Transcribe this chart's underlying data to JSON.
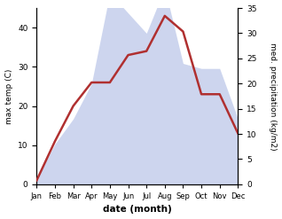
{
  "months": [
    "Jan",
    "Feb",
    "Mar",
    "Apr",
    "May",
    "Jun",
    "Jul",
    "Aug",
    "Sep",
    "Oct",
    "Nov",
    "Dec"
  ],
  "temperature": [
    1,
    11,
    20,
    26,
    26,
    33,
    34,
    43,
    39,
    23,
    23,
    13
  ],
  "precipitation": [
    1,
    8,
    13,
    20,
    38,
    34,
    30,
    39,
    24,
    23,
    23,
    13
  ],
  "temp_color": "#b03030",
  "precip_fill_color": "#b8c4e8",
  "precip_fill_alpha": 0.7,
  "temp_ylim": [
    0,
    45
  ],
  "precip_ylim": [
    0,
    35
  ],
  "temp_yticks": [
    0,
    10,
    20,
    30,
    40
  ],
  "precip_yticks": [
    0,
    5,
    10,
    15,
    20,
    25,
    30,
    35
  ],
  "xlabel": "date (month)",
  "ylabel_left": "max temp (C)",
  "ylabel_right": "med. precipitation (kg/m2)",
  "figsize": [
    3.18,
    2.47
  ],
  "dpi": 100
}
